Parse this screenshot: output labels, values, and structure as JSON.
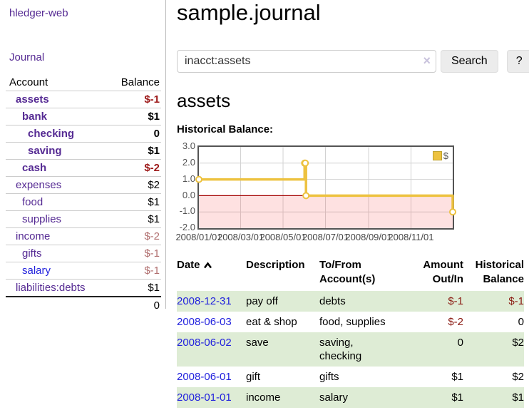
{
  "sidebar": {
    "brand": "hledger-web",
    "journal_link": "Journal",
    "accounts": {
      "headers": {
        "account": "Account",
        "balance": "Balance"
      },
      "rows": [
        {
          "account": "assets",
          "balance": "$-1"
        },
        {
          "account": "bank",
          "balance": "$1"
        },
        {
          "account": "checking",
          "balance": "0"
        },
        {
          "account": "saving",
          "balance": "$1"
        },
        {
          "account": "cash",
          "balance": "$-2"
        },
        {
          "account": "expenses",
          "balance": "$2"
        },
        {
          "account": "food",
          "balance": "$1"
        },
        {
          "account": "supplies",
          "balance": "$1"
        },
        {
          "account": "income",
          "balance": "$-2"
        },
        {
          "account": "gifts",
          "balance": "$-1"
        },
        {
          "account": "salary",
          "balance": "$-1"
        },
        {
          "account": "liabilities:debts",
          "balance": "$1"
        }
      ],
      "total": "0"
    }
  },
  "main": {
    "title": "sample.journal",
    "search": {
      "value": "inacct:assets",
      "clear_icon": "×",
      "button": "Search",
      "help_button": "?"
    },
    "account_heading": "assets",
    "section_label": "Historical Balance:"
  },
  "chart_data": {
    "type": "line",
    "title": "Historical Balance:",
    "xlabel": "",
    "ylabel": "",
    "step": true,
    "grid": true,
    "legend_position": "top-right",
    "x_range": [
      "2008-01-01",
      "2008-12-31"
    ],
    "ylim": [
      -2,
      3
    ],
    "x_ticks": [
      "2008/01/01",
      "2008/03/01",
      "2008/05/01",
      "2008/07/01",
      "2008/09/01",
      "2008/11/01"
    ],
    "y_ticks": [
      "3.0",
      "2.0",
      "1.0",
      "0.0",
      "-1.0",
      "-2.0"
    ],
    "series": [
      {
        "name": "$",
        "color": "#edc240",
        "points": [
          {
            "date": "2008-01-01",
            "value": 1
          },
          {
            "date": "2008-06-01",
            "value": 2
          },
          {
            "date": "2008-06-02",
            "value": 2
          },
          {
            "date": "2008-06-03",
            "value": 0
          },
          {
            "date": "2008-12-31",
            "value": -1
          }
        ]
      }
    ],
    "negative_region_fill": "#fbdada",
    "zero_line_color": "#a40000"
  },
  "register": {
    "headers": {
      "date": "Date",
      "description": "Description",
      "accounts": "To/From Account(s)",
      "amount": "Amount Out/In",
      "balance": "Historical Balance"
    },
    "rows": [
      {
        "date": "2008-12-31",
        "description": "pay off",
        "accounts": "debts",
        "amount": "$-1",
        "balance": "$-1"
      },
      {
        "date": "2008-06-03",
        "description": "eat & shop",
        "accounts": "food, supplies",
        "amount": "$-2",
        "balance": "0"
      },
      {
        "date": "2008-06-02",
        "description": "save",
        "accounts": "saving, checking",
        "amount": "0",
        "balance": "$2"
      },
      {
        "date": "2008-06-01",
        "description": "gift",
        "accounts": "gifts",
        "amount": "$1",
        "balance": "$2"
      },
      {
        "date": "2008-01-01",
        "description": "income",
        "accounts": "salary",
        "amount": "$1",
        "balance": "$1"
      }
    ]
  },
  "colors": {
    "link_purple": "#552a93",
    "link_blue": "#2222dd",
    "sidebar_negative_strong": "#9d1a1a",
    "sidebar_negative_muted": "#b06e6e",
    "register_negative": "#8a1a12",
    "row_stripe_green": "#deecd5",
    "chart_series_yellow": "#edc240",
    "chart_negative_fill": "#fbdada",
    "chart_zero_line": "#a40000"
  }
}
